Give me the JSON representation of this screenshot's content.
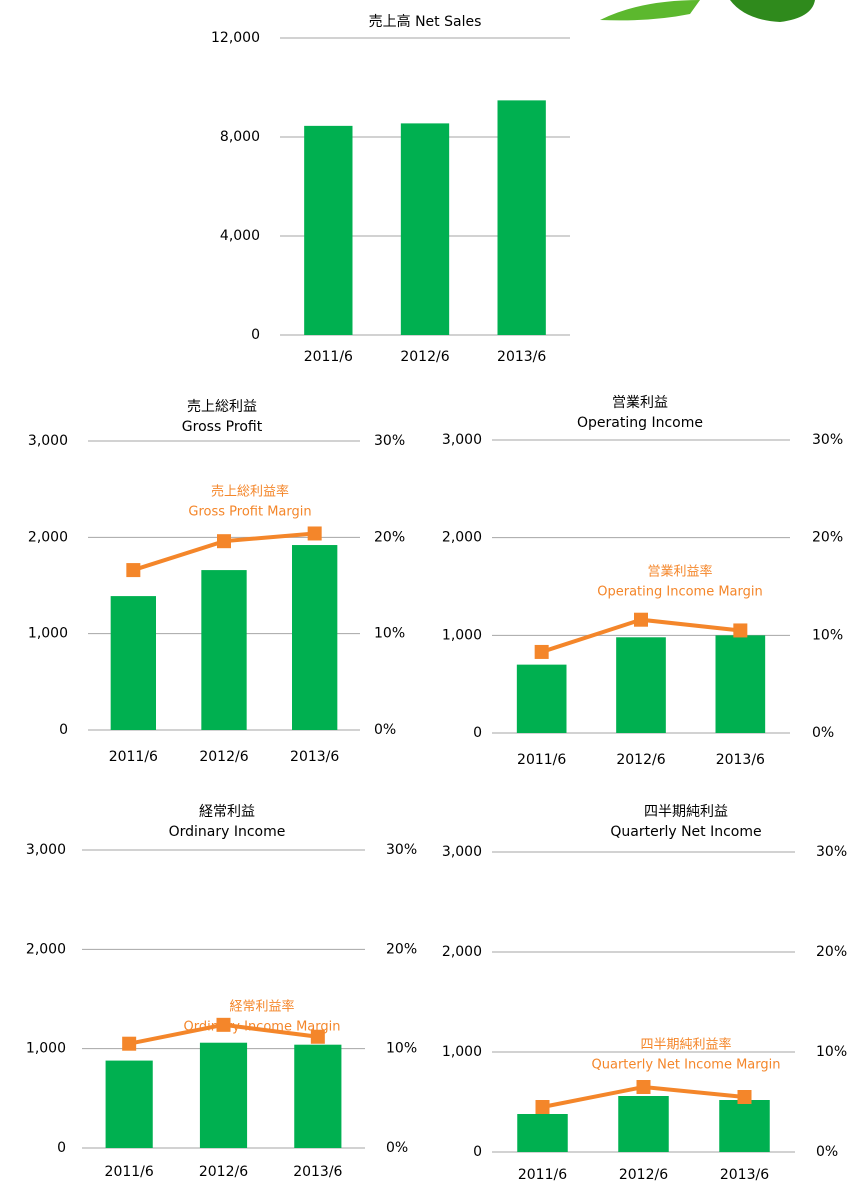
{
  "charts": [
    {
      "type": "bar",
      "title": [
        "売上高 Net Sales"
      ],
      "categories": [
        "2011/6",
        "2012/6",
        "2013/6"
      ],
      "series": [
        {
          "color": "#00b050",
          "values": [
            8450,
            8550,
            9480
          ]
        }
      ],
      "ylim": [
        0,
        12000
      ],
      "yticks": [
        {
          "value": 0,
          "label": "0"
        },
        {
          "value": 4000,
          "label": "4,000"
        },
        {
          "value": 8000,
          "label": "8,000"
        },
        {
          "value": 12000,
          "label": "12,000"
        }
      ],
      "grid": true
    },
    {
      "type": "combo",
      "title": [
        "売上総利益",
        "Gross Profit"
      ],
      "categories": [
        "2011/6",
        "2012/6",
        "2013/6"
      ],
      "series": [
        {
          "color": "#00b050",
          "values": [
            1390,
            1660,
            1920
          ]
        },
        {
          "name": [
            "売上総利益率",
            "Gross Profit Margin"
          ],
          "color": "#f4862a",
          "axis": "y2",
          "values": [
            16.6,
            19.6,
            20.4
          ]
        }
      ],
      "ylim": [
        0,
        3000
      ],
      "yticks": [
        {
          "value": 0,
          "label": "0"
        },
        {
          "value": 1000,
          "label": "1,000"
        },
        {
          "value": 2000,
          "label": "2,000"
        },
        {
          "value": 3000,
          "label": "3,000"
        }
      ],
      "y2lim": [
        0,
        30
      ],
      "y2ticks": [
        {
          "value": 0,
          "label": "0%"
        },
        {
          "value": 10,
          "label": "10%"
        },
        {
          "value": 20,
          "label": "20%"
        },
        {
          "value": 30,
          "label": "30%"
        }
      ],
      "grid": true
    },
    {
      "type": "combo",
      "title": [
        "営業利益",
        "Operating Income"
      ],
      "categories": [
        "2011/6",
        "2012/6",
        "2013/6"
      ],
      "series": [
        {
          "color": "#00b050",
          "values": [
            700,
            980,
            1000
          ]
        },
        {
          "name": [
            "営業利益率",
            "Operating Income Margin"
          ],
          "color": "#f4862a",
          "axis": "y2",
          "values": [
            8.3,
            11.6,
            10.5
          ]
        }
      ],
      "ylim": [
        0,
        3000
      ],
      "yticks": [
        {
          "value": 0,
          "label": "0"
        },
        {
          "value": 1000,
          "label": "1,000"
        },
        {
          "value": 2000,
          "label": "2,000"
        },
        {
          "value": 3000,
          "label": "3,000"
        }
      ],
      "y2lim": [
        0,
        30
      ],
      "y2ticks": [
        {
          "value": 0,
          "label": "0%"
        },
        {
          "value": 10,
          "label": "10%"
        },
        {
          "value": 20,
          "label": "20%"
        },
        {
          "value": 30,
          "label": "30%"
        }
      ],
      "grid": true
    },
    {
      "type": "combo",
      "title": [
        "経常利益",
        "Ordinary Income"
      ],
      "categories": [
        "2011/6",
        "2012/6",
        "2013/6"
      ],
      "series": [
        {
          "color": "#00b050",
          "values": [
            880,
            1060,
            1040
          ]
        },
        {
          "name": [
            "経常利益率",
            "Ordinary Income Margin"
          ],
          "color": "#f4862a",
          "axis": "y2",
          "values": [
            10.5,
            12.4,
            11.2
          ]
        }
      ],
      "ylim": [
        0,
        3000
      ],
      "yticks": [
        {
          "value": 0,
          "label": "0"
        },
        {
          "value": 1000,
          "label": "1,000"
        },
        {
          "value": 2000,
          "label": "2,000"
        },
        {
          "value": 3000,
          "label": "3,000"
        }
      ],
      "y2lim": [
        0,
        30
      ],
      "y2ticks": [
        {
          "value": 0,
          "label": "0%"
        },
        {
          "value": 10,
          "label": "10%"
        },
        {
          "value": 20,
          "label": "20%"
        },
        {
          "value": 30,
          "label": "30%"
        }
      ],
      "grid": true
    },
    {
      "type": "combo",
      "title": [
        "四半期純利益",
        "Quarterly Net Income"
      ],
      "categories": [
        "2011/6",
        "2012/6",
        "2013/6"
      ],
      "series": [
        {
          "color": "#00b050",
          "values": [
            380,
            560,
            520
          ]
        },
        {
          "name": [
            "四半期純利益率",
            "Quarterly Net Income  Margin"
          ],
          "color": "#f4862a",
          "axis": "y2",
          "values": [
            4.5,
            6.5,
            5.5
          ]
        }
      ],
      "ylim": [
        0,
        3000
      ],
      "yticks": [
        {
          "value": 0,
          "label": "0"
        },
        {
          "value": 1000,
          "label": "1,000"
        },
        {
          "value": 2000,
          "label": "2,000"
        },
        {
          "value": 3000,
          "label": "3,000"
        }
      ],
      "y2lim": [
        0,
        30
      ],
      "y2ticks": [
        {
          "value": 0,
          "label": "0%"
        },
        {
          "value": 10,
          "label": "10%"
        },
        {
          "value": 20,
          "label": "20%"
        },
        {
          "value": 30,
          "label": "30%"
        }
      ],
      "grid": true
    }
  ]
}
